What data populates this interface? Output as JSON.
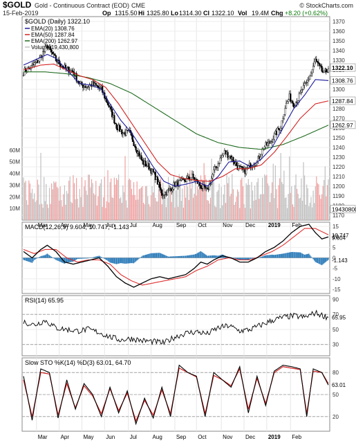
{
  "header": {
    "symbol": "$GOLD",
    "name": "Gold - Continuous Contract (EOD)",
    "exchange": "CME",
    "credit": "© StockCharts.com",
    "date": "15-Feb-2019",
    "op_label": "Op",
    "op": "1315.50",
    "hi_label": "Hi",
    "hi": "1325.80",
    "lo_label": "Lo",
    "lo": "1314.30",
    "cl_label": "Cl",
    "cl": "1322.10",
    "vol_label": "Vol",
    "vol": "19.4M",
    "chg_label": "Chg",
    "chg": "+8.20 (+0.62%)"
  },
  "colors": {
    "up": "#000000",
    "down": "#000000",
    "ema20": "#1a1a9c",
    "ema50": "#d42020",
    "ema200": "#1f6b1f",
    "vol_up": "#c0c0c0",
    "vol_down": "#f0a0a0",
    "macd": "#000000",
    "signal": "#e03030",
    "hist": "#2a7ab8",
    "rsi": "#000000",
    "sto_k": "#000000",
    "sto_d": "#d42020"
  },
  "x_axis": [
    "Mar",
    "Apr",
    "May",
    "Jun",
    "Jul",
    "Aug",
    "Sep",
    "Oct",
    "Nov",
    "Dec",
    "2019",
    "Feb"
  ],
  "chart_data": [
    {
      "type": "candlestick",
      "title": "$GOLD (Daily) 1322.10",
      "legend": [
        {
          "name": "EMA(20) 1308.76",
          "color": "#1a1a9c"
        },
        {
          "name": "EMA(50) 1287.84",
          "color": "#d42020"
        },
        {
          "name": "EMA(200) 1262.97",
          "color": "#1f6b1f"
        },
        {
          "name": "Volume 19,430,800",
          "color": "#c0c0c0"
        }
      ],
      "ylim": [
        1165,
        1375
      ],
      "y_ticks": [
        1170,
        1180,
        1190,
        1200,
        1210,
        1220,
        1230,
        1240,
        1250,
        1260,
        1270,
        1280,
        1290,
        1300,
        1310,
        1320,
        1330,
        1340,
        1350,
        1360,
        1370
      ],
      "price_tags": [
        {
          "label": "1322.10",
          "value": 1322.1,
          "bold": true
        },
        {
          "label": "1308.76",
          "value": 1308.76
        },
        {
          "label": "1287.84",
          "value": 1287.84
        },
        {
          "label": "1262.97",
          "value": 1262.97
        },
        {
          "label": "19430800",
          "value": 1176
        }
      ],
      "close_keypoints": [
        [
          0,
          1318
        ],
        [
          6,
          1322
        ],
        [
          14,
          1330
        ],
        [
          22,
          1345
        ],
        [
          30,
          1330
        ],
        [
          38,
          1322
        ],
        [
          46,
          1318
        ],
        [
          52,
          1305
        ],
        [
          58,
          1303
        ],
        [
          64,
          1305
        ],
        [
          72,
          1300
        ],
        [
          80,
          1280
        ],
        [
          86,
          1262
        ],
        [
          92,
          1255
        ],
        [
          98,
          1255
        ],
        [
          104,
          1240
        ],
        [
          110,
          1225
        ],
        [
          116,
          1220
        ],
        [
          122,
          1210
        ],
        [
          128,
          1192
        ],
        [
          134,
          1195
        ],
        [
          140,
          1202
        ],
        [
          148,
          1205
        ],
        [
          156,
          1210
        ],
        [
          164,
          1200
        ],
        [
          170,
          1195
        ],
        [
          176,
          1215
        ],
        [
          182,
          1228
        ],
        [
          186,
          1235
        ],
        [
          192,
          1230
        ],
        [
          198,
          1220
        ],
        [
          204,
          1215
        ],
        [
          210,
          1222
        ],
        [
          216,
          1225
        ],
        [
          222,
          1240
        ],
        [
          228,
          1245
        ],
        [
          232,
          1252
        ],
        [
          238,
          1262
        ],
        [
          242,
          1282
        ],
        [
          246,
          1292
        ],
        [
          250,
          1285
        ],
        [
          254,
          1290
        ],
        [
          258,
          1300
        ],
        [
          262,
          1306
        ],
        [
          266,
          1317
        ],
        [
          270,
          1330
        ],
        [
          274,
          1322
        ],
        [
          278,
          1316
        ],
        [
          282,
          1322
        ]
      ],
      "ema20_keypoints": [
        [
          0,
          1325
        ],
        [
          14,
          1332
        ],
        [
          22,
          1336
        ],
        [
          30,
          1332
        ],
        [
          40,
          1320
        ],
        [
          52,
          1306
        ],
        [
          64,
          1304
        ],
        [
          72,
          1300
        ],
        [
          80,
          1285
        ],
        [
          90,
          1268
        ],
        [
          100,
          1255
        ],
        [
          110,
          1238
        ],
        [
          120,
          1220
        ],
        [
          130,
          1205
        ],
        [
          140,
          1200
        ],
        [
          150,
          1202
        ],
        [
          160,
          1205
        ],
        [
          170,
          1200
        ],
        [
          180,
          1210
        ],
        [
          190,
          1225
        ],
        [
          200,
          1226
        ],
        [
          210,
          1220
        ],
        [
          220,
          1228
        ],
        [
          230,
          1240
        ],
        [
          240,
          1260
        ],
        [
          250,
          1280
        ],
        [
          260,
          1294
        ],
        [
          270,
          1310
        ],
        [
          282,
          1309
        ]
      ],
      "ema50_keypoints": [
        [
          0,
          1320
        ],
        [
          16,
          1325
        ],
        [
          28,
          1326
        ],
        [
          40,
          1320
        ],
        [
          52,
          1314
        ],
        [
          64,
          1310
        ],
        [
          76,
          1302
        ],
        [
          88,
          1285
        ],
        [
          100,
          1265
        ],
        [
          112,
          1245
        ],
        [
          124,
          1225
        ],
        [
          136,
          1212
        ],
        [
          148,
          1208
        ],
        [
          160,
          1206
        ],
        [
          172,
          1205
        ],
        [
          184,
          1210
        ],
        [
          196,
          1218
        ],
        [
          208,
          1218
        ],
        [
          220,
          1222
        ],
        [
          232,
          1235
        ],
        [
          244,
          1252
        ],
        [
          256,
          1270
        ],
        [
          270,
          1285
        ],
        [
          282,
          1288
        ]
      ],
      "ema200_keypoints": [
        [
          0,
          1318
        ],
        [
          20,
          1318
        ],
        [
          40,
          1316
        ],
        [
          60,
          1312
        ],
        [
          80,
          1306
        ],
        [
          100,
          1296
        ],
        [
          120,
          1282
        ],
        [
          140,
          1268
        ],
        [
          160,
          1254
        ],
        [
          180,
          1245
        ],
        [
          200,
          1240
        ],
        [
          220,
          1238
        ],
        [
          240,
          1243
        ],
        [
          260,
          1252
        ],
        [
          282,
          1263
        ]
      ],
      "volume_axis": {
        "labels": [
          "10M",
          "20M",
          "30M",
          "40M",
          "50M",
          "60M"
        ],
        "values": [
          10,
          20,
          30,
          40,
          50,
          60
        ]
      }
    },
    {
      "type": "line",
      "title": "MACD(12,26,9) 9.604, 10.747, -1.143",
      "ylim": [
        -17,
        17
      ],
      "y_ticks": [
        15,
        10,
        5,
        0,
        -5,
        -10,
        -15
      ],
      "price_tags": [
        {
          "label": "10.747",
          "value": 10.747
        },
        {
          "label": "9.604",
          "value": 9.604
        },
        {
          "label": "-1.143",
          "value": -1.143
        }
      ],
      "macd_keypoints": [
        [
          0,
          3
        ],
        [
          8,
          0
        ],
        [
          16,
          4
        ],
        [
          22,
          6
        ],
        [
          30,
          3
        ],
        [
          38,
          -2
        ],
        [
          46,
          -3
        ],
        [
          54,
          -2
        ],
        [
          62,
          -1
        ],
        [
          70,
          0
        ],
        [
          78,
          -4
        ],
        [
          86,
          -9
        ],
        [
          94,
          -12
        ],
        [
          102,
          -14
        ],
        [
          110,
          -12
        ],
        [
          118,
          -10
        ],
        [
          126,
          -9
        ],
        [
          134,
          -10
        ],
        [
          142,
          -9
        ],
        [
          150,
          -8
        ],
        [
          158,
          -5
        ],
        [
          164,
          -2
        ],
        [
          170,
          -3
        ],
        [
          176,
          -1
        ],
        [
          184,
          1
        ],
        [
          192,
          0
        ],
        [
          200,
          -2
        ],
        [
          208,
          -2
        ],
        [
          216,
          0
        ],
        [
          224,
          3
        ],
        [
          232,
          5
        ],
        [
          240,
          8
        ],
        [
          248,
          12
        ],
        [
          256,
          15
        ],
        [
          264,
          16
        ],
        [
          270,
          12
        ],
        [
          276,
          9
        ],
        [
          282,
          10
        ]
      ],
      "signal_keypoints": [
        [
          0,
          4
        ],
        [
          10,
          2
        ],
        [
          20,
          4
        ],
        [
          30,
          4
        ],
        [
          40,
          0
        ],
        [
          50,
          -2
        ],
        [
          60,
          -1
        ],
        [
          70,
          -1
        ],
        [
          80,
          -3
        ],
        [
          90,
          -8
        ],
        [
          100,
          -11
        ],
        [
          110,
          -13
        ],
        [
          120,
          -12
        ],
        [
          130,
          -11
        ],
        [
          140,
          -10
        ],
        [
          150,
          -9
        ],
        [
          160,
          -6
        ],
        [
          170,
          -4
        ],
        [
          180,
          -1
        ],
        [
          190,
          0
        ],
        [
          200,
          -1
        ],
        [
          210,
          -1
        ],
        [
          220,
          1
        ],
        [
          230,
          3
        ],
        [
          240,
          6
        ],
        [
          250,
          10
        ],
        [
          260,
          14
        ],
        [
          270,
          14
        ],
        [
          282,
          11
        ]
      ]
    },
    {
      "type": "line",
      "title": "RSI(14) 65.95",
      "ylim": [
        15,
        95
      ],
      "y_ticks": [
        90,
        70,
        50,
        30
      ],
      "price_tags": [
        {
          "label": "65.95",
          "value": 65.95
        }
      ],
      "rsi_keypoints": [
        [
          0,
          60
        ],
        [
          10,
          56
        ],
        [
          20,
          62
        ],
        [
          30,
          52
        ],
        [
          40,
          50
        ],
        [
          50,
          48
        ],
        [
          60,
          50
        ],
        [
          70,
          46
        ],
        [
          80,
          40
        ],
        [
          90,
          36
        ],
        [
          100,
          38
        ],
        [
          110,
          35
        ],
        [
          120,
          34
        ],
        [
          130,
          32
        ],
        [
          140,
          40
        ],
        [
          150,
          45
        ],
        [
          160,
          47
        ],
        [
          170,
          44
        ],
        [
          180,
          52
        ],
        [
          190,
          55
        ],
        [
          200,
          48
        ],
        [
          210,
          50
        ],
        [
          220,
          56
        ],
        [
          230,
          62
        ],
        [
          240,
          66
        ],
        [
          250,
          68
        ],
        [
          260,
          66
        ],
        [
          270,
          72
        ],
        [
          282,
          66
        ]
      ]
    },
    {
      "type": "line",
      "title": "Slow STO %K(14) %D(3) 63.01, 64.70",
      "ylim": [
        0,
        100
      ],
      "y_ticks": [
        80,
        50,
        20
      ],
      "price_tags": [
        {
          "label": "63.01",
          "value": 63.01
        }
      ],
      "sto_k_keypoints": [
        [
          0,
          75
        ],
        [
          8,
          15
        ],
        [
          16,
          85
        ],
        [
          24,
          80
        ],
        [
          32,
          18
        ],
        [
          40,
          70
        ],
        [
          48,
          30
        ],
        [
          56,
          65
        ],
        [
          64,
          50
        ],
        [
          72,
          20
        ],
        [
          80,
          60
        ],
        [
          88,
          25
        ],
        [
          96,
          55
        ],
        [
          104,
          10
        ],
        [
          112,
          45
        ],
        [
          120,
          18
        ],
        [
          128,
          60
        ],
        [
          136,
          20
        ],
        [
          144,
          90
        ],
        [
          152,
          80
        ],
        [
          160,
          75
        ],
        [
          168,
          20
        ],
        [
          176,
          80
        ],
        [
          184,
          70
        ],
        [
          192,
          60
        ],
        [
          200,
          88
        ],
        [
          208,
          25
        ],
        [
          216,
          75
        ],
        [
          224,
          35
        ],
        [
          232,
          82
        ],
        [
          240,
          90
        ],
        [
          248,
          88
        ],
        [
          256,
          85
        ],
        [
          262,
          20
        ],
        [
          268,
          85
        ],
        [
          276,
          80
        ],
        [
          282,
          63
        ]
      ],
      "sto_d_keypoints": [
        [
          0,
          70
        ],
        [
          8,
          20
        ],
        [
          16,
          80
        ],
        [
          24,
          78
        ],
        [
          32,
          22
        ],
        [
          40,
          65
        ],
        [
          48,
          32
        ],
        [
          56,
          62
        ],
        [
          64,
          48
        ],
        [
          72,
          24
        ],
        [
          80,
          58
        ],
        [
          88,
          28
        ],
        [
          96,
          52
        ],
        [
          104,
          14
        ],
        [
          112,
          42
        ],
        [
          120,
          22
        ],
        [
          128,
          56
        ],
        [
          136,
          24
        ],
        [
          144,
          86
        ],
        [
          152,
          80
        ],
        [
          160,
          74
        ],
        [
          168,
          24
        ],
        [
          176,
          76
        ],
        [
          184,
          70
        ],
        [
          192,
          62
        ],
        [
          200,
          85
        ],
        [
          208,
          30
        ],
        [
          216,
          72
        ],
        [
          224,
          38
        ],
        [
          232,
          80
        ],
        [
          240,
          88
        ],
        [
          248,
          86
        ],
        [
          256,
          84
        ],
        [
          262,
          24
        ],
        [
          268,
          82
        ],
        [
          276,
          80
        ],
        [
          282,
          65
        ]
      ]
    }
  ]
}
